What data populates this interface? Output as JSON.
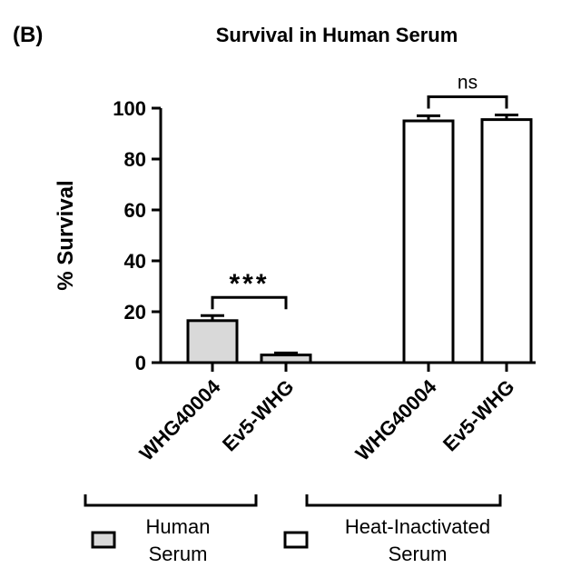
{
  "panel_label": "(B)",
  "chart_data": {
    "type": "bar",
    "title": "Survival in Human Serum",
    "xlabel": "",
    "ylabel": "% Survival",
    "ylim": [
      0,
      100
    ],
    "yticks": [
      "0",
      "20",
      "40",
      "60",
      "80",
      "100"
    ],
    "categories": [
      "WHG40004",
      "Ev5-WHG",
      "WHG40004",
      "Ev5-WHG"
    ],
    "values": [
      16.5,
      3,
      95,
      95.5
    ],
    "errors": [
      2,
      0.8,
      2,
      1.8
    ],
    "fills": [
      "#d9d9d9",
      "#d9d9d9",
      "#ffffff",
      "#ffffff"
    ],
    "groups": [
      {
        "name": "Human Serum",
        "line1": "Human",
        "line2": "Serum",
        "fill": "#d9d9d9",
        "bars": [
          0,
          1
        ]
      },
      {
        "name": "Heat-Inactivated Serum",
        "line1": "Heat-Inactivated",
        "line2": "Serum",
        "fill": "#ffffff",
        "bars": [
          2,
          3
        ]
      }
    ],
    "significance": [
      {
        "pair": [
          0,
          1
        ],
        "label": "***"
      },
      {
        "pair": [
          2,
          3
        ],
        "label": "ns"
      }
    ],
    "grid": false,
    "legend_position": "bottom"
  }
}
